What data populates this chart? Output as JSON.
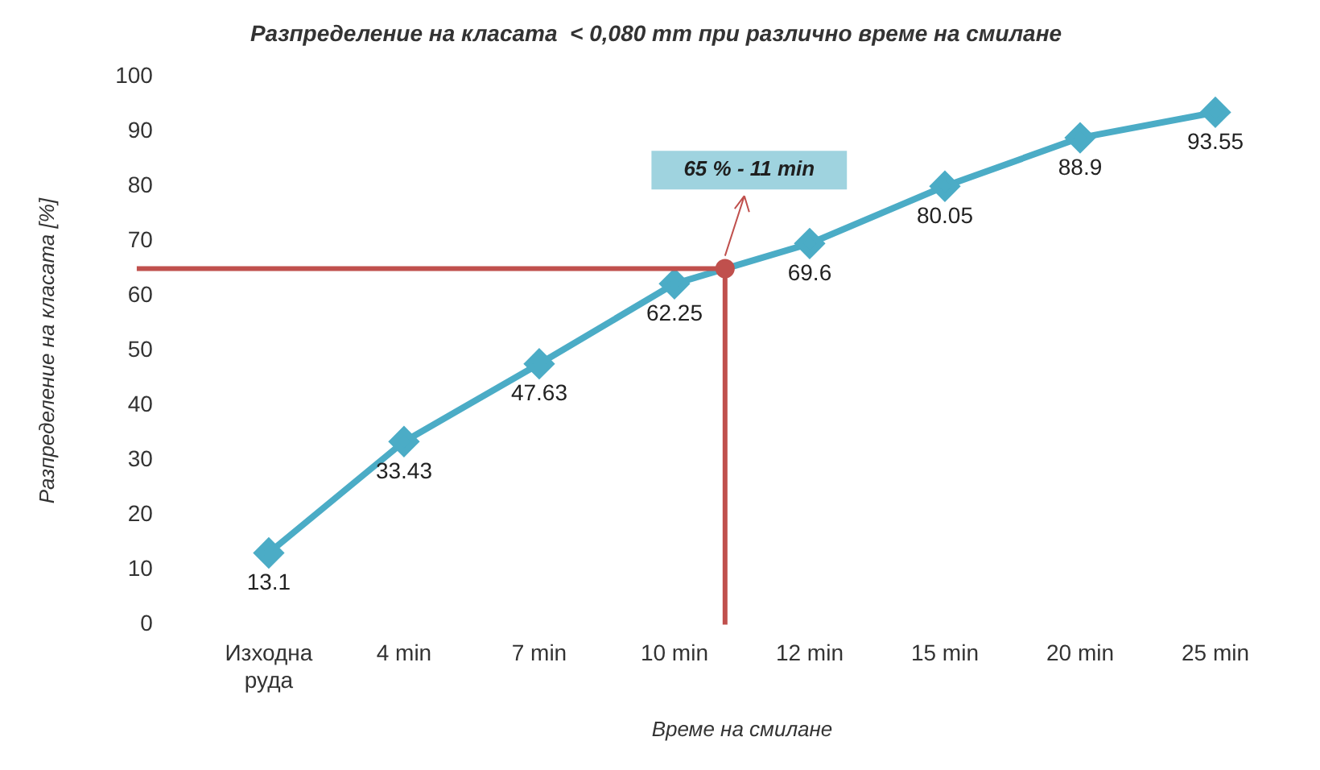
{
  "chart_data": {
    "type": "line",
    "title": "Разпределение на класата  < 0,080 mm при различно време на смилане",
    "xlabel": "Време на смилане",
    "ylabel": "Разпределение на класата [%]",
    "categories": [
      "Изходна руда",
      "4 min",
      "7 min",
      "10 min",
      "12 min",
      "15 min",
      "20 min",
      "25 min"
    ],
    "series": [
      {
        "color": "#4bacc6",
        "values": [
          13.1,
          33.43,
          47.63,
          62.25,
          69.6,
          80.05,
          88.9,
          93.55
        ]
      }
    ],
    "ylim": [
      0,
      100
    ],
    "yticks": [
      0,
      10,
      20,
      30,
      40,
      50,
      60,
      70,
      80,
      90,
      100
    ],
    "grid": false,
    "legend": false,
    "marker": "diamond",
    "line_style": "solid",
    "data_labels": true,
    "ref_lines": [
      {
        "axis": "y",
        "value": 65,
        "color": "#c0504d"
      }
    ],
    "annotations": [
      "65 % - 11 min"
    ]
  }
}
